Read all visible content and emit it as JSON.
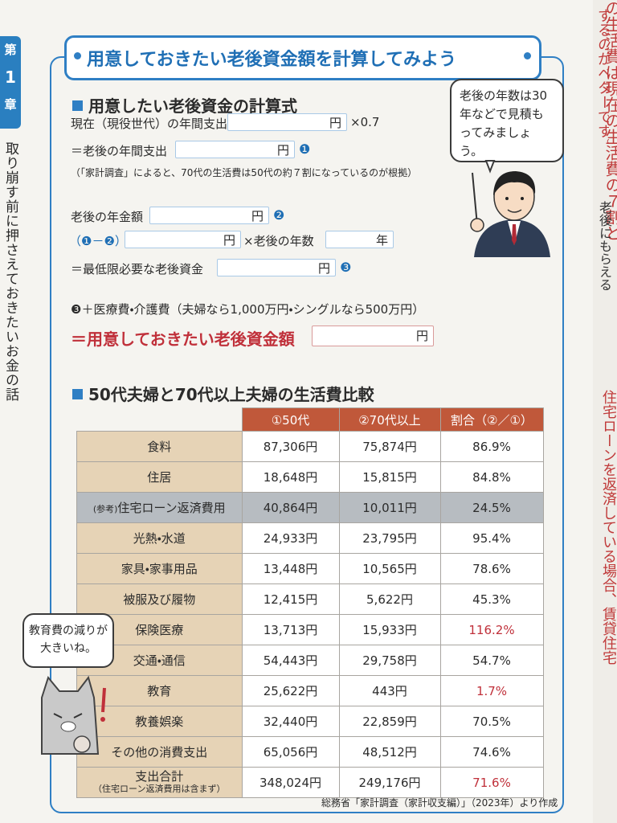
{
  "side_tab": {
    "chapter_top": "第",
    "chapter_number": "1",
    "chapter_bottom": "章",
    "running_title": "取り崩す前に押さえておきたいお金の話"
  },
  "next_page": {
    "column_1": "の生活費は現在の生活費の７割と",
    "column_2": "するのがベターです。",
    "column_3": "老後にもらえる",
    "column_4": "住宅ローンを返済している場合、賃貸住宅"
  },
  "title": "用意しておきたい老後資金額を計算してみよう",
  "formula": {
    "heading": "用意したい老後資金の計算式",
    "current_spending": "現在（現役世代）の年間支出",
    "yen": "円",
    "times_factor": "×0.7",
    "retired_spending": "＝老後の年間支出",
    "mark_1": "❶",
    "note": "（「家計調査」によると、70代の生活費は50代の約７割になっているのが根拠）",
    "pension": "老後の年金額",
    "mark_2": "❷",
    "difference": "（❶－❷）",
    "times_years": "×老後の年数",
    "year_unit": "年",
    "minimum_needed": "＝最低限必要な老後資金",
    "mark_3": "❸",
    "plus_medical": "❸＋医療費・介護費（夫婦なら1,000万円・シングルなら500万円）",
    "result": "＝用意しておきたい老後資金額"
  },
  "speech_bubble": "老後の年数は30年などで見積もってみましょう。",
  "table": {
    "heading": "50代夫婦と70代以上夫婦の生活費比較",
    "columns": [
      "①50代",
      "②70代以上",
      "割合（②／①）"
    ],
    "rows": [
      {
        "label": "食料",
        "v50": "87,306円",
        "v70": "75,874円",
        "ratio": "86.9%"
      },
      {
        "label": "住居",
        "v50": "18,648円",
        "v70": "15,815円",
        "ratio": "84.8%"
      },
      {
        "prefix": "(参考)",
        "label": "住宅ローン返済費用",
        "v50": "40,864円",
        "v70": "10,011円",
        "ratio": "24.5%",
        "reference": true
      },
      {
        "label": "光熱・水道",
        "v50": "24,933円",
        "v70": "23,795円",
        "ratio": "95.4%"
      },
      {
        "label": "家具・家事用品",
        "v50": "13,448円",
        "v70": "10,565円",
        "ratio": "78.6%"
      },
      {
        "label": "被服及び履物",
        "v50": "12,415円",
        "v70": "5,622円",
        "ratio": "45.3%"
      },
      {
        "label": "保険医療",
        "v50": "13,713円",
        "v70": "15,933円",
        "ratio": "116.2%",
        "highlight": true
      },
      {
        "label": "交通・通信",
        "v50": "54,443円",
        "v70": "29,758円",
        "ratio": "54.7%"
      },
      {
        "label": "教育",
        "v50": "25,622円",
        "v70": "443円",
        "ratio": "1.7%",
        "highlight": true
      },
      {
        "label": "教養娯楽",
        "v50": "32,440円",
        "v70": "22,859円",
        "ratio": "70.5%"
      },
      {
        "label": "その他の消費支出",
        "v50": "65,056円",
        "v70": "48,512円",
        "ratio": "74.6%"
      },
      {
        "label": "支出合計",
        "note": "（住宅ローン返済費用は含まず）",
        "v50": "348,024円",
        "v70": "249,176円",
        "ratio": "71.6%",
        "highlight": true
      }
    ],
    "source": "総務省「家計調査（家計収支編）」（2023年）より作成"
  },
  "cat_bubble": "教育費の減りが大きいね。"
}
